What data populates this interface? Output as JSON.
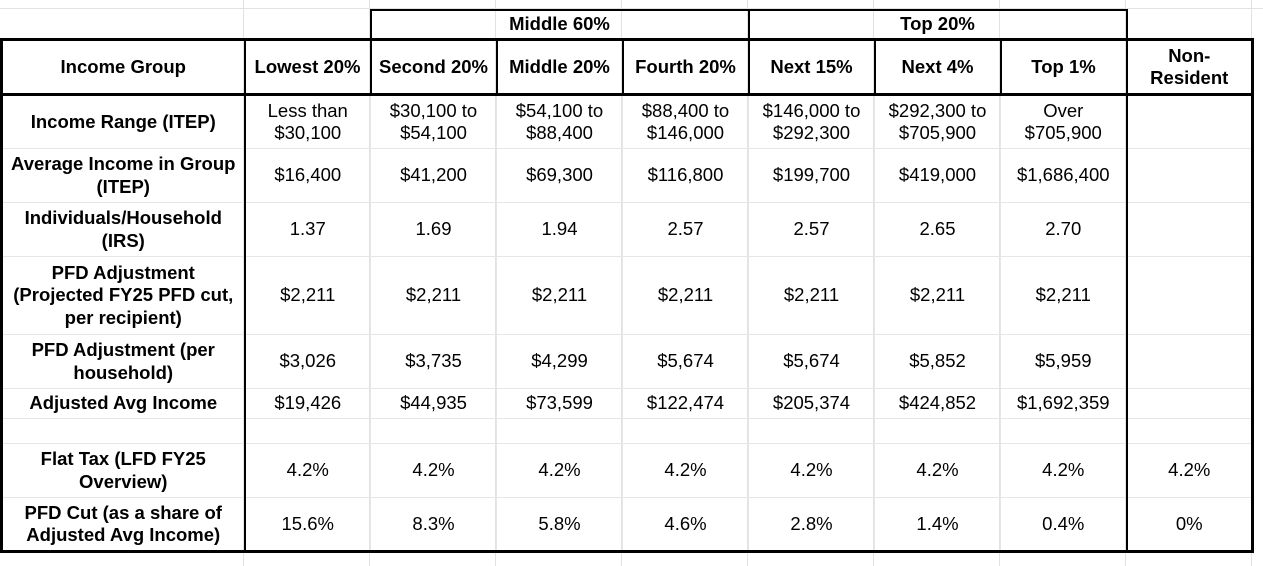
{
  "groups": {
    "middle": "Middle 60%",
    "top": "Top 20%"
  },
  "header": {
    "income_group": "Income Group",
    "columns": [
      "Lowest 20%",
      "Second 20%",
      "Middle 20%",
      "Fourth 20%",
      "Next 15%",
      "Next 4%",
      "Top 1%",
      "Non-Resident"
    ]
  },
  "rows": [
    {
      "label": "Income Range (ITEP)",
      "values": [
        "Less than $30,100",
        "$30,100 to $54,100",
        "$54,100 to $88,400",
        "$88,400 to $146,000",
        "$146,000 to $292,300",
        "$292,300 to $705,900",
        "Over $705,900",
        ""
      ]
    },
    {
      "label": "Average Income in Group (ITEP)",
      "values": [
        "$16,400",
        "$41,200",
        "$69,300",
        "$116,800",
        "$199,700",
        "$419,000",
        "$1,686,400",
        ""
      ]
    },
    {
      "label": "Individuals/Household (IRS)",
      "values": [
        "1.37",
        "1.69",
        "1.94",
        "2.57",
        "2.57",
        "2.65",
        "2.70",
        ""
      ]
    },
    {
      "label": "PFD Adjustment (Projected FY25 PFD cut, per recipient)",
      "values": [
        "$2,211",
        "$2,211",
        "$2,211",
        "$2,211",
        "$2,211",
        "$2,211",
        "$2,211",
        ""
      ]
    },
    {
      "label": "PFD Adjustment (per household)",
      "values": [
        "$3,026",
        "$3,735",
        "$4,299",
        "$5,674",
        "$5,674",
        "$5,852",
        "$5,959",
        ""
      ]
    },
    {
      "label": "Adjusted Avg Income",
      "values": [
        "$19,426",
        "$44,935",
        "$73,599",
        "$122,474",
        "$205,374",
        "$424,852",
        "$1,692,359",
        ""
      ]
    },
    {
      "label": "",
      "values": [
        "",
        "",
        "",
        "",
        "",
        "",
        "",
        ""
      ]
    },
    {
      "label": "Flat Tax (LFD FY25 Overview)",
      "values": [
        "4.2%",
        "4.2%",
        "4.2%",
        "4.2%",
        "4.2%",
        "4.2%",
        "4.2%",
        "4.2%"
      ]
    },
    {
      "label": "PFD Cut (as a share of Adjusted Avg Income)",
      "values": [
        "15.6%",
        "8.3%",
        "5.8%",
        "4.6%",
        "2.8%",
        "1.4%",
        "0.4%",
        "0%"
      ]
    }
  ]
}
